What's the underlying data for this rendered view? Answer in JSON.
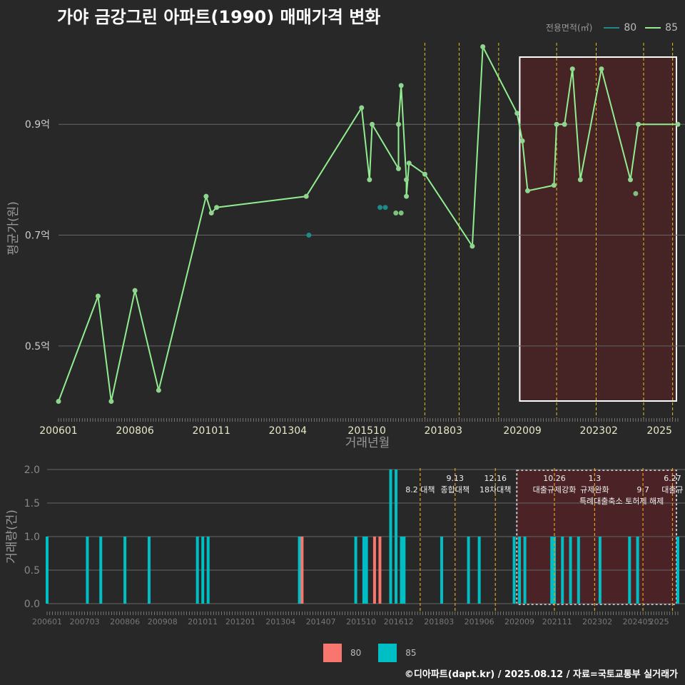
{
  "title": "가야 금강그린 아파트(1990) 매매가격 변화",
  "legend_title": "전용면적(㎡)",
  "footer": "©디아파트(dapt.kr) / 2025.08.12 / 자료=국토교통부 실거래가",
  "colors": {
    "s80_line": "#1f8a8a",
    "s85_line": "#90ee90",
    "s80_bar": "#f8766d",
    "s85_bar": "#00bfc4",
    "policy_line": "#e0c020",
    "highlight": "#5a1f23"
  },
  "chart_data": [
    {
      "type": "line",
      "xlabel": "거래년월",
      "ylabel": "평균가(원)",
      "x_ticks": [
        "200601",
        "200806",
        "201011",
        "201304",
        "201510",
        "201803",
        "202009",
        "202302",
        "2025"
      ],
      "y_ticks": [
        "0.5억",
        "0.7억",
        "0.9억"
      ],
      "y_tick_values": [
        0.5,
        0.7,
        0.9
      ],
      "ylim": [
        0.38,
        1.06
      ],
      "xlim": [
        "2006-01",
        "2025-08"
      ],
      "series": [
        {
          "name": "80",
          "points": [
            [
              "2013-12",
              0.7
            ],
            [
              "2016-03",
              0.75
            ],
            [
              "2016-05",
              0.75
            ]
          ]
        },
        {
          "name": "85",
          "points": [
            [
              "2006-01",
              0.4
            ],
            [
              "2007-04",
              0.59
            ],
            [
              "2007-09",
              0.4
            ],
            [
              "2008-06",
              0.6
            ],
            [
              "2009-03",
              0.42
            ],
            [
              "2010-09",
              0.77
            ],
            [
              "2010-11",
              0.74
            ],
            [
              "2011-01",
              0.75
            ],
            [
              "2013-11",
              0.77
            ],
            [
              "2015-08",
              0.93
            ],
            [
              "2015-11",
              0.8
            ],
            [
              "2015-12",
              0.9
            ],
            [
              "2016-10",
              0.82
            ],
            [
              "2016-10",
              0.9
            ],
            [
              "2016-11",
              0.97
            ],
            [
              "2017-01",
              0.8
            ],
            [
              "2017-01",
              0.77
            ],
            [
              "2017-02",
              0.83
            ],
            [
              "2017-08",
              0.81
            ],
            [
              "2019-02",
              0.68
            ],
            [
              "2019-06",
              1.04
            ],
            [
              "2020-07",
              0.92
            ],
            [
              "2020-09",
              0.87
            ],
            [
              "2020-11",
              0.78
            ],
            [
              "2021-09",
              0.79
            ],
            [
              "2021-10",
              0.9
            ],
            [
              "2022-01",
              0.9
            ],
            [
              "2022-04",
              1.0
            ],
            [
              "2022-07",
              0.8
            ],
            [
              "2023-03",
              1.0
            ],
            [
              "2024-02",
              0.8
            ],
            [
              "2024-05",
              0.9
            ],
            [
              "2025-08",
              0.9
            ]
          ]
        }
      ],
      "extra_points_85": [
        [
          "2016-09",
          0.74
        ],
        [
          "2016-11",
          0.74
        ],
        [
          "2024-04",
          0.775
        ]
      ],
      "policy_lines": [
        "2017-08",
        "2018-09",
        "2019-12",
        "2021-10",
        "2023-01",
        "2024-07",
        "2025-06"
      ],
      "highlight_range": [
        "2020-08",
        "2025-08"
      ]
    },
    {
      "type": "bar",
      "ylabel": "거래량(건)",
      "y_ticks": [
        "0.0",
        "0.5",
        "1.0",
        "1.5",
        "2.0"
      ],
      "y_tick_values": [
        0,
        0.5,
        1,
        1.5,
        2
      ],
      "ylim": [
        0,
        2
      ],
      "x_ticks": [
        "200601",
        "200703",
        "200806",
        "200908",
        "201011",
        "201201",
        "201304",
        "201407",
        "201510",
        "201612",
        "201803",
        "201906",
        "202009",
        "202111",
        "202302",
        "202405",
        "2025"
      ],
      "legend": [
        "80",
        "85"
      ],
      "bars_85": [
        [
          "2006-01",
          1
        ],
        [
          "2007-04",
          1
        ],
        [
          "2007-09",
          1
        ],
        [
          "2008-06",
          1
        ],
        [
          "2009-03",
          1
        ],
        [
          "2010-09",
          1
        ],
        [
          "2010-11",
          1
        ],
        [
          "2011-01",
          1
        ],
        [
          "2013-11",
          1
        ],
        [
          "2015-08",
          1
        ],
        [
          "2015-11",
          1
        ],
        [
          "2015-12",
          1
        ],
        [
          "2016-09",
          2
        ],
        [
          "2016-11",
          2
        ],
        [
          "2017-01",
          1
        ],
        [
          "2017-02",
          1
        ],
        [
          "2018-04",
          1
        ],
        [
          "2019-02",
          1
        ],
        [
          "2019-06",
          1
        ],
        [
          "2020-07",
          1
        ],
        [
          "2020-09",
          1
        ],
        [
          "2020-11",
          1
        ],
        [
          "2021-09",
          1
        ],
        [
          "2021-10",
          1
        ],
        [
          "2022-01",
          1
        ],
        [
          "2022-04",
          1
        ],
        [
          "2022-07",
          1
        ],
        [
          "2023-03",
          1
        ],
        [
          "2024-02",
          1
        ],
        [
          "2024-05",
          1
        ],
        [
          "2025-08",
          1
        ]
      ],
      "bars_80": [
        [
          "2013-12",
          1
        ],
        [
          "2016-03",
          1
        ],
        [
          "2016-05",
          1
        ]
      ],
      "annotations": [
        {
          "date": "2017-08",
          "label": "8.2 대책",
          "row": 1
        },
        {
          "date": "2018-09",
          "label": "9.13",
          "row": 0
        },
        {
          "date": "2018-09",
          "label": "종합대책",
          "row": 1
        },
        {
          "date": "2019-12",
          "label": "12.16",
          "row": 0
        },
        {
          "date": "2019-12",
          "label": "18차대책",
          "row": 1
        },
        {
          "date": "2021-10",
          "label": "10.26",
          "row": 0
        },
        {
          "date": "2021-10",
          "label": "대출규제강화",
          "row": 1
        },
        {
          "date": "2023-01",
          "label": "1.3",
          "row": 0
        },
        {
          "date": "2023-01",
          "label": "규제완화",
          "row": 1
        },
        {
          "date": "2024-07",
          "label": "9.7",
          "row": 1
        },
        {
          "date": "2024-07",
          "label": "특례대출축소 토허제 해제",
          "row": 2
        },
        {
          "date": "2025-06",
          "label": "6.27",
          "row": 0
        },
        {
          "date": "2025-06",
          "label": "대출규",
          "row": 1
        }
      ]
    }
  ]
}
